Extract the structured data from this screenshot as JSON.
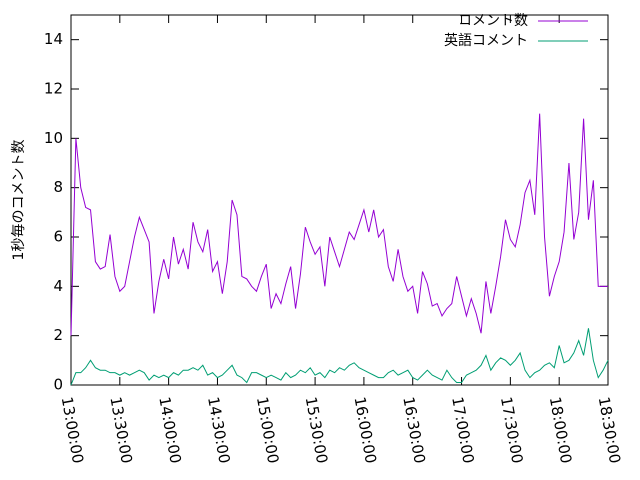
{
  "chart_data": {
    "type": "line",
    "ylabel": "1秒毎のコメント数",
    "legend": "top right",
    "xlim": [
      "13:00:00",
      "18:30:00"
    ],
    "xticks": [
      "13:00:00",
      "13:30:00",
      "14:00:00",
      "14:30:00",
      "15:00:00",
      "15:30:00",
      "16:00:00",
      "16:30:00",
      "17:00:00",
      "17:30:00",
      "18:00:00",
      "18:30:00"
    ],
    "ylim": [
      0,
      15
    ],
    "yticks": [
      0,
      2,
      4,
      6,
      8,
      10,
      12,
      14
    ],
    "x": [
      "13:00:00",
      "13:03:00",
      "13:06:00",
      "13:09:00",
      "13:12:00",
      "13:15:00",
      "13:18:00",
      "13:21:00",
      "13:24:00",
      "13:27:00",
      "13:30:00",
      "13:33:00",
      "13:36:00",
      "13:39:00",
      "13:42:00",
      "13:45:00",
      "13:48:00",
      "13:51:00",
      "13:54:00",
      "13:57:00",
      "14:00:00",
      "14:03:00",
      "14:06:00",
      "14:09:00",
      "14:12:00",
      "14:15:00",
      "14:18:00",
      "14:21:00",
      "14:24:00",
      "14:27:00",
      "14:30:00",
      "14:33:00",
      "14:36:00",
      "14:39:00",
      "14:42:00",
      "14:45:00",
      "14:48:00",
      "14:51:00",
      "14:54:00",
      "14:57:00",
      "15:00:00",
      "15:03:00",
      "15:06:00",
      "15:09:00",
      "15:12:00",
      "15:15:00",
      "15:18:00",
      "15:21:00",
      "15:24:00",
      "15:27:00",
      "15:30:00",
      "15:33:00",
      "15:36:00",
      "15:39:00",
      "15:42:00",
      "15:45:00",
      "15:48:00",
      "15:51:00",
      "15:54:00",
      "15:57:00",
      "16:00:00",
      "16:03:00",
      "16:06:00",
      "16:09:00",
      "16:12:00",
      "16:15:00",
      "16:18:00",
      "16:21:00",
      "16:24:00",
      "16:27:00",
      "16:30:00",
      "16:33:00",
      "16:36:00",
      "16:39:00",
      "16:42:00",
      "16:45:00",
      "16:48:00",
      "16:51:00",
      "16:54:00",
      "16:57:00",
      "17:00:00",
      "17:03:00",
      "17:06:00",
      "17:09:00",
      "17:12:00",
      "17:15:00",
      "17:18:00",
      "17:21:00",
      "17:24:00",
      "17:27:00",
      "17:30:00",
      "17:33:00",
      "17:36:00",
      "17:39:00",
      "17:42:00",
      "17:45:00",
      "17:48:00",
      "17:51:00",
      "17:54:00",
      "17:57:00",
      "18:00:00",
      "18:03:00",
      "18:06:00",
      "18:09:00",
      "18:12:00",
      "18:15:00",
      "18:18:00",
      "18:21:00",
      "18:24:00",
      "18:27:00",
      "18:30:00"
    ],
    "series": [
      {
        "name": "コメント数",
        "color": "#9400d3",
        "values": [
          2.0,
          10.0,
          8.0,
          7.2,
          7.1,
          5.0,
          4.7,
          4.8,
          6.1,
          4.4,
          3.8,
          4.0,
          5.0,
          6.0,
          6.8,
          6.3,
          5.8,
          2.9,
          4.2,
          5.1,
          4.3,
          6.0,
          4.9,
          5.5,
          4.7,
          6.6,
          5.8,
          5.4,
          6.3,
          4.6,
          5.0,
          3.7,
          5.0,
          7.5,
          6.9,
          4.4,
          4.3,
          4.0,
          3.8,
          4.4,
          4.9,
          3.1,
          3.7,
          3.3,
          4.1,
          4.8,
          3.1,
          4.5,
          6.4,
          5.8,
          5.3,
          5.6,
          4.0,
          6.0,
          5.4,
          4.8,
          5.5,
          6.2,
          5.9,
          6.5,
          7.1,
          6.2,
          7.1,
          6.0,
          6.3,
          4.8,
          4.2,
          5.5,
          4.4,
          3.8,
          4.0,
          2.9,
          4.6,
          4.1,
          3.2,
          3.3,
          2.8,
          3.1,
          3.3,
          4.4,
          3.6,
          2.8,
          3.5,
          2.9,
          2.1,
          4.2,
          2.9,
          4.0,
          5.2,
          6.7,
          5.9,
          5.6,
          6.5,
          7.8,
          8.3,
          6.9,
          11.0,
          6.0,
          3.6,
          4.4,
          5.0,
          6.2,
          9.0,
          5.9,
          7.0,
          10.8,
          6.7,
          8.3,
          4.0,
          4.0,
          4.0
        ]
      },
      {
        "name": "英語コメント",
        "color": "#009e73",
        "values": [
          0.0,
          0.5,
          0.5,
          0.7,
          1.0,
          0.7,
          0.6,
          0.6,
          0.5,
          0.5,
          0.4,
          0.5,
          0.4,
          0.5,
          0.6,
          0.5,
          0.2,
          0.4,
          0.3,
          0.4,
          0.3,
          0.5,
          0.4,
          0.6,
          0.6,
          0.7,
          0.6,
          0.8,
          0.4,
          0.5,
          0.3,
          0.4,
          0.6,
          0.8,
          0.4,
          0.3,
          0.1,
          0.5,
          0.5,
          0.4,
          0.3,
          0.4,
          0.3,
          0.2,
          0.5,
          0.3,
          0.4,
          0.6,
          0.5,
          0.7,
          0.4,
          0.5,
          0.3,
          0.6,
          0.5,
          0.7,
          0.6,
          0.8,
          0.9,
          0.7,
          0.6,
          0.5,
          0.4,
          0.3,
          0.3,
          0.5,
          0.6,
          0.4,
          0.5,
          0.6,
          0.3,
          0.2,
          0.4,
          0.6,
          0.4,
          0.3,
          0.2,
          0.6,
          0.3,
          0.1,
          0.1,
          0.4,
          0.5,
          0.6,
          0.8,
          1.2,
          0.6,
          0.9,
          1.1,
          1.0,
          0.8,
          1.0,
          1.3,
          0.6,
          0.3,
          0.5,
          0.6,
          0.8,
          0.9,
          0.7,
          1.6,
          0.9,
          1.0,
          1.3,
          1.8,
          1.2,
          2.3,
          1.0,
          0.3,
          0.6,
          1.0
        ]
      }
    ]
  }
}
